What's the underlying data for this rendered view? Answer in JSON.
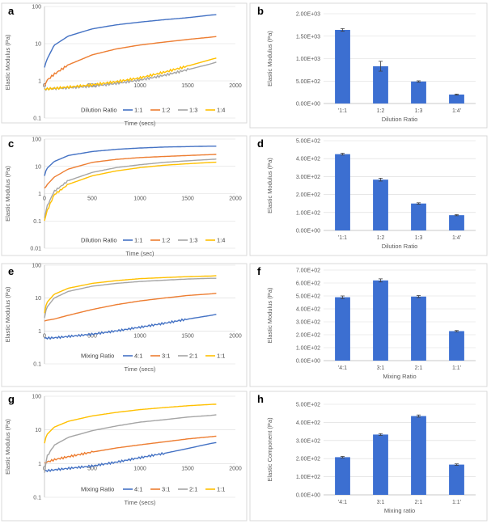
{
  "chart_data": [
    {
      "panel": "a",
      "type": "line",
      "xlabel": "Time (secs)",
      "ylabel": "Elastic Modulus (Pa)",
      "yscale": "log",
      "xlim": [
        0,
        2000
      ],
      "ylim": [
        0.1,
        100
      ],
      "xticks": [
        "0",
        "500",
        "1000",
        "1500",
        "2000"
      ],
      "yticks": [
        "0.1",
        "1",
        "10",
        "100"
      ],
      "legend_title": "Dilution Ratio",
      "legend_position": "bottom",
      "series": [
        {
          "name": "1:1",
          "color": "#4472c4",
          "x": [
            0,
            20,
            100,
            250,
            500,
            750,
            1000,
            1250,
            1500,
            1750,
            1800
          ],
          "y": [
            2.3,
            3.5,
            9,
            16,
            25,
            32,
            38,
            44,
            50,
            59,
            60
          ]
        },
        {
          "name": "1:2",
          "color": "#ed7d31",
          "x": [
            0,
            20,
            100,
            250,
            500,
            750,
            1000,
            1250,
            1500,
            1750,
            1800
          ],
          "y": [
            0.7,
            1.0,
            1.5,
            2.7,
            5.0,
            7.2,
            9.2,
            11,
            13,
            15,
            15.5
          ]
        },
        {
          "name": "1:3",
          "color": "#a5a5a5",
          "x": [
            0,
            100,
            250,
            500,
            750,
            1000,
            1250,
            1500,
            1750,
            1800
          ],
          "y": [
            0.6,
            0.62,
            0.65,
            0.72,
            0.85,
            1.05,
            1.4,
            2.0,
            2.9,
            3.2
          ]
        },
        {
          "name": "1:4",
          "color": "#ffc000",
          "x": [
            0,
            100,
            250,
            500,
            750,
            1000,
            1250,
            1500,
            1750,
            1800
          ],
          "y": [
            0.6,
            0.63,
            0.68,
            0.78,
            0.95,
            1.2,
            1.7,
            2.5,
            3.8,
            4.1
          ]
        }
      ]
    },
    {
      "panel": "b",
      "type": "bar",
      "xlabel": "Dilution Ratio",
      "ylabel": "Elastic Modulus (Pa)",
      "ylim": [
        0,
        2000
      ],
      "yticks": [
        "0.00E+00",
        "5.00E+02",
        "1.00E+03",
        "1.50E+03",
        "2.00E+03"
      ],
      "categories": [
        "'1:1",
        "1:2",
        "1:3",
        "1:4'"
      ],
      "values": [
        1640,
        830,
        490,
        200
      ],
      "errors": [
        30,
        110,
        15,
        10
      ],
      "color": "#3c6fd1"
    },
    {
      "panel": "c",
      "type": "line",
      "xlabel": "Time (sec)",
      "ylabel": "Elastic Modulus (Pa)",
      "yscale": "log",
      "xlim": [
        0,
        2000
      ],
      "ylim": [
        0.01,
        100
      ],
      "xticks": [
        "0",
        "500",
        "1000",
        "1500",
        "2000"
      ],
      "yticks": [
        "0.01",
        "0.1",
        "1",
        "10",
        "100"
      ],
      "legend_title": "Dilution Ratio",
      "legend_position": "bottom",
      "series": [
        {
          "name": "1:1",
          "color": "#4472c4",
          "x": [
            0,
            20,
            100,
            250,
            500,
            750,
            1000,
            1250,
            1500,
            1750,
            1800
          ],
          "y": [
            4.5,
            8,
            15,
            25,
            35,
            42,
            47,
            51,
            53,
            55,
            55
          ]
        },
        {
          "name": "1:2",
          "color": "#ed7d31",
          "x": [
            0,
            20,
            100,
            250,
            500,
            750,
            1000,
            1250,
            1500,
            1750,
            1800
          ],
          "y": [
            1.5,
            2,
            4,
            8,
            14,
            18,
            21,
            23,
            25,
            27,
            27.5
          ]
        },
        {
          "name": "1:3",
          "color": "#a5a5a5",
          "x": [
            0,
            20,
            100,
            250,
            500,
            750,
            1000,
            1250,
            1500,
            1750,
            1800
          ],
          "y": [
            0.12,
            0.3,
            1.2,
            3,
            6,
            9,
            11.5,
            14,
            16,
            18,
            18.5
          ]
        },
        {
          "name": "1:4",
          "color": "#ffc000",
          "x": [
            0,
            20,
            100,
            250,
            500,
            750,
            1000,
            1250,
            1500,
            1750,
            1800
          ],
          "y": [
            0.1,
            0.2,
            0.9,
            2.2,
            4.5,
            6.8,
            9,
            11,
            12.5,
            14,
            14.2
          ]
        }
      ]
    },
    {
      "panel": "d",
      "type": "bar",
      "xlabel": "Dilution Ratio",
      "ylabel": "Elastic Modulus (Pa)",
      "ylim": [
        0,
        500
      ],
      "yticks": [
        "0.00E+00",
        "1.00E+02",
        "2.00E+02",
        "3.00E+02",
        "4.00E+02",
        "5.00E+02"
      ],
      "categories": [
        "'1:1",
        "1:2",
        "1:3",
        "1:4'"
      ],
      "values": [
        425,
        283,
        150,
        85
      ],
      "errors": [
        5,
        8,
        4,
        3
      ],
      "color": "#3c6fd1"
    },
    {
      "panel": "e",
      "type": "line",
      "xlabel": "Time (secs)",
      "ylabel": "Elastic Modulus (Pa)",
      "yscale": "log",
      "xlim": [
        0,
        2000
      ],
      "ylim": [
        0.1,
        100
      ],
      "xticks": [
        "0",
        "500",
        "1000",
        "1500",
        "2000"
      ],
      "yticks": [
        "0.1",
        "1",
        "10",
        "100"
      ],
      "legend_title": "Mixing Ratio",
      "legend_position": "bottom",
      "series": [
        {
          "name": "4:1",
          "color": "#4472c4",
          "x": [
            0,
            100,
            250,
            500,
            750,
            1000,
            1250,
            1500,
            1750,
            1800
          ],
          "y": [
            0.6,
            0.62,
            0.68,
            0.8,
            1.0,
            1.3,
            1.7,
            2.3,
            3.0,
            3.2
          ]
        },
        {
          "name": "3:1",
          "color": "#ed7d31",
          "x": [
            0,
            20,
            100,
            250,
            500,
            750,
            1000,
            1250,
            1500,
            1750,
            1800
          ],
          "y": [
            2.0,
            2.1,
            2.3,
            3.0,
            4.5,
            6.3,
            8.2,
            10,
            12,
            13.5,
            14
          ]
        },
        {
          "name": "2:1",
          "color": "#a5a5a5",
          "x": [
            0,
            20,
            100,
            250,
            500,
            750,
            1000,
            1250,
            1500,
            1750,
            1800
          ],
          "y": [
            2.5,
            5,
            10,
            16,
            23,
            28,
            32,
            35,
            38,
            40,
            40
          ]
        },
        {
          "name": "1:1",
          "color": "#ffc000",
          "x": [
            0,
            20,
            100,
            250,
            500,
            750,
            1000,
            1250,
            1500,
            1750,
            1800
          ],
          "y": [
            3.5,
            7,
            13,
            20,
            28,
            34,
            39,
            42,
            45,
            47,
            48
          ]
        }
      ]
    },
    {
      "panel": "f",
      "type": "bar",
      "xlabel": "Mixing Ratio",
      "ylabel": "Elastic Modulus (Pa)",
      "ylim": [
        0,
        700
      ],
      "yticks": [
        "0.00E+00",
        "1.00E+02",
        "2.00E+02",
        "3.00E+02",
        "4.00E+02",
        "5.00E+02",
        "6.00E+02",
        "7.00E+02"
      ],
      "categories": [
        "'4:1",
        "3:1",
        "2:1",
        "1:1'"
      ],
      "values": [
        490,
        620,
        495,
        228
      ],
      "errors": [
        10,
        12,
        8,
        5
      ],
      "color": "#3c6fd1"
    },
    {
      "panel": "g",
      "type": "line",
      "xlabel": "Time (secs)",
      "ylabel": "Elastic Modulus (Pa)",
      "yscale": "log",
      "xlim": [
        0,
        2000
      ],
      "ylim": [
        0.1,
        100
      ],
      "xticks": [
        "0",
        "500",
        "1000",
        "1500",
        "2000"
      ],
      "yticks": [
        "0.1",
        "1",
        "10",
        "100"
      ],
      "legend_title": "Mixing Ratio",
      "legend_position": "bottom",
      "series": [
        {
          "name": "4:1",
          "color": "#4472c4",
          "x": [
            0,
            100,
            250,
            500,
            750,
            1000,
            1250,
            1500,
            1750,
            1800
          ],
          "y": [
            0.6,
            0.65,
            0.72,
            0.85,
            1.1,
            1.5,
            2.0,
            2.8,
            4.0,
            4.2
          ]
        },
        {
          "name": "3:1",
          "color": "#ed7d31",
          "x": [
            0,
            20,
            100,
            250,
            500,
            750,
            1000,
            1250,
            1500,
            1750,
            1800
          ],
          "y": [
            1.0,
            1.1,
            1.3,
            1.6,
            2.2,
            2.9,
            3.6,
            4.4,
            5.4,
            6.3,
            6.5
          ]
        },
        {
          "name": "2:1",
          "color": "#a5a5a5",
          "x": [
            0,
            20,
            100,
            250,
            500,
            750,
            1000,
            1250,
            1500,
            1750,
            1800
          ],
          "y": [
            0.5,
            1.5,
            3.5,
            6,
            9.5,
            13,
            17,
            20,
            24,
            27,
            28
          ]
        },
        {
          "name": "1:1",
          "color": "#ffc000",
          "x": [
            0,
            20,
            100,
            250,
            500,
            750,
            1000,
            1250,
            1500,
            1750,
            1800
          ],
          "y": [
            4,
            7,
            12,
            18,
            26,
            33,
            40,
            46,
            52,
            57,
            58
          ]
        }
      ]
    },
    {
      "panel": "h",
      "type": "bar",
      "xlabel": "Mixing ratio",
      "ylabel": "Elastic Component (Pa)",
      "ylim": [
        0,
        500
      ],
      "yticks": [
        "0.00E+00",
        "1.00E+02",
        "2.00E+02",
        "3.00E+02",
        "4.00E+02",
        "5.00E+02"
      ],
      "categories": [
        "'4:1",
        "3:1",
        "2:1",
        "1:1'"
      ],
      "values": [
        208,
        333,
        435,
        167
      ],
      "errors": [
        4,
        5,
        6,
        4
      ],
      "color": "#3c6fd1"
    }
  ]
}
